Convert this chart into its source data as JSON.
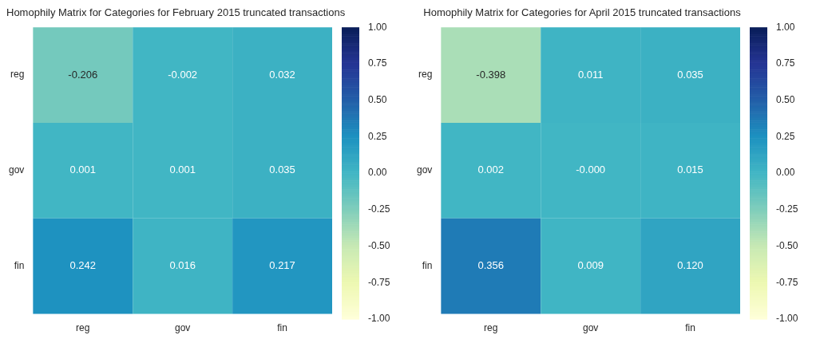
{
  "chart_data": [
    {
      "type": "heatmap",
      "title": "Homophily Matrix for Categories for February 2015 truncated transactions",
      "categories": [
        "reg",
        "gov",
        "fin"
      ],
      "y_categories": [
        "reg",
        "gov",
        "fin"
      ],
      "cells": [
        [
          -0.206,
          -0.002,
          0.032
        ],
        [
          0.001,
          0.001,
          0.035
        ],
        [
          0.242,
          0.016,
          0.217
        ]
      ],
      "cell_labels": [
        [
          "-0.206",
          "-0.002",
          "0.032"
        ],
        [
          "0.001",
          "0.001",
          "0.035"
        ],
        [
          "0.242",
          "0.016",
          "0.217"
        ]
      ],
      "clim": [
        -1,
        1
      ],
      "cticks": [
        {
          "value": -1,
          "label": "-1.00"
        },
        {
          "value": -0.75,
          "label": "-0.75"
        },
        {
          "value": -0.5,
          "label": "-0.50"
        },
        {
          "value": -0.25,
          "label": "-0.25"
        },
        {
          "value": 0,
          "label": "0.00"
        },
        {
          "value": 0.25,
          "label": "0.25"
        },
        {
          "value": 0.5,
          "label": "0.50"
        },
        {
          "value": 0.75,
          "label": "0.75"
        },
        {
          "value": 1,
          "label": "1.00"
        }
      ]
    },
    {
      "type": "heatmap",
      "title": "Homophily Matrix for Categories for April 2015 truncated transactions",
      "categories": [
        "reg",
        "gov",
        "fin"
      ],
      "y_categories": [
        "reg",
        "gov",
        "fin"
      ],
      "cells": [
        [
          -0.398,
          0.011,
          0.035
        ],
        [
          0.002,
          0,
          0.015
        ],
        [
          0.356,
          0.009,
          0.12
        ]
      ],
      "cell_labels": [
        [
          "-0.398",
          "0.011",
          "0.035"
        ],
        [
          "0.002",
          "-0.000",
          "0.015"
        ],
        [
          "0.356",
          "0.009",
          "0.120"
        ]
      ],
      "clim": [
        -1,
        1
      ],
      "cticks": [
        {
          "value": -1,
          "label": "-1.00"
        },
        {
          "value": -0.75,
          "label": "-0.75"
        },
        {
          "value": -0.5,
          "label": "-0.50"
        },
        {
          "value": -0.25,
          "label": "-0.25"
        },
        {
          "value": 0,
          "label": "0.00"
        },
        {
          "value": 0.25,
          "label": "0.25"
        },
        {
          "value": 0.5,
          "label": "0.50"
        },
        {
          "value": 0.75,
          "label": "0.75"
        },
        {
          "value": 1,
          "label": "1.00"
        }
      ]
    }
  ]
}
